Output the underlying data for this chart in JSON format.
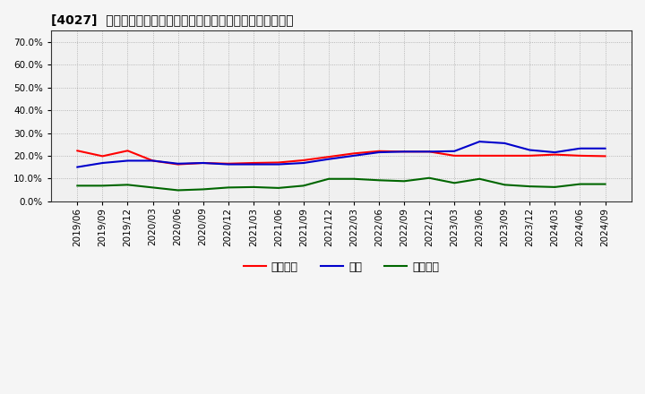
{
  "title": "[4027]  売上債権、在庫、買入債務の総資産に対すべ比率の推移",
  "dates": [
    "2019/06",
    "2019/09",
    "2019/12",
    "2020/03",
    "2020/06",
    "2020/09",
    "2020/12",
    "2021/03",
    "2021/06",
    "2021/09",
    "2021/12",
    "2022/03",
    "2022/06",
    "2022/09",
    "2022/12",
    "2023/03",
    "2023/06",
    "2023/09",
    "2023/12",
    "2024/03",
    "2024/06",
    "2024/09"
  ],
  "receivables": [
    0.222,
    0.198,
    0.222,
    0.178,
    0.162,
    0.168,
    0.165,
    0.168,
    0.17,
    0.18,
    0.195,
    0.21,
    0.22,
    0.218,
    0.218,
    0.2,
    0.2,
    0.2,
    0.2,
    0.205,
    0.2,
    0.198
  ],
  "inventory": [
    0.15,
    0.168,
    0.178,
    0.178,
    0.165,
    0.168,
    0.162,
    0.162,
    0.162,
    0.168,
    0.185,
    0.2,
    0.215,
    0.218,
    0.218,
    0.22,
    0.262,
    0.255,
    0.225,
    0.215,
    0.232,
    0.232
  ],
  "payables": [
    0.068,
    0.068,
    0.072,
    0.06,
    0.048,
    0.052,
    0.06,
    0.062,
    0.058,
    0.068,
    0.098,
    0.098,
    0.092,
    0.088,
    0.102,
    0.08,
    0.098,
    0.072,
    0.065,
    0.062,
    0.075,
    0.075
  ],
  "receivables_color": "#ff0000",
  "inventory_color": "#0000cc",
  "payables_color": "#006600",
  "legend_labels": [
    "売上債権",
    "在庫",
    "買入債務"
  ],
  "ylim": [
    0.0,
    0.75
  ],
  "yticks": [
    0.0,
    0.1,
    0.2,
    0.3,
    0.4,
    0.5,
    0.6,
    0.7
  ],
  "background_color": "#f5f5f5",
  "plot_bg_color": "#f0f0f0",
  "grid_color": "#888888",
  "title_fontsize": 10,
  "legend_fontsize": 9,
  "tick_fontsize": 7.5
}
